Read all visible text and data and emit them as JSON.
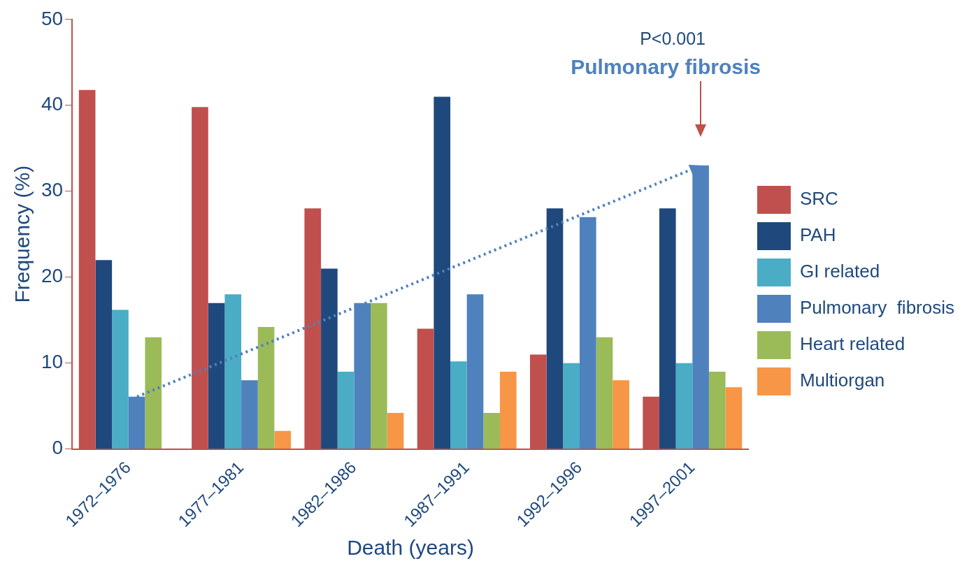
{
  "chart_data": {
    "type": "bar",
    "xlabel": "Death (years)",
    "ylabel": "Frequency (%)",
    "categories": [
      "1972–1976",
      "1977–1981",
      "1982–1986",
      "1987–1991",
      "1992–1996",
      "1997–2001"
    ],
    "series": [
      {
        "name": "SRC",
        "color": "#c0504d",
        "values": [
          41.8,
          39.8,
          28,
          14,
          11,
          6.1
        ]
      },
      {
        "name": "PAH",
        "color": "#1f497d",
        "values": [
          22,
          17,
          21,
          41,
          28,
          28
        ]
      },
      {
        "name": "GI related",
        "color": "#4bacc6",
        "values": [
          16.2,
          18,
          9,
          10.2,
          10,
          10
        ]
      },
      {
        "name": "Pulmonary  fibrosis",
        "color": "#4f81bd",
        "values": [
          6.1,
          8,
          17,
          18,
          27,
          33
        ]
      },
      {
        "name": "Heart related",
        "color": "#9bbb59",
        "values": [
          13,
          14.2,
          17,
          4.2,
          13,
          9
        ]
      },
      {
        "name": "Multiorgan",
        "color": "#f79646",
        "values": [
          null,
          2.1,
          4.2,
          9,
          8,
          7.2
        ]
      }
    ],
    "ylim": [
      0,
      50
    ],
    "yticks": [
      0,
      10,
      20,
      30,
      40,
      50
    ],
    "grid": false,
    "legend": "right",
    "annotations": [
      "P<0.001",
      "Pulmonary fibrosis"
    ]
  }
}
